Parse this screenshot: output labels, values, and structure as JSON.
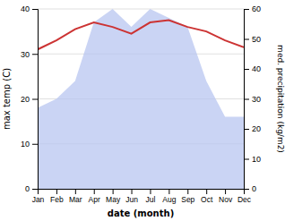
{
  "chart_data": {
    "type": "line",
    "xlabel": "date (month)",
    "ylabel": "max temp (C)",
    "y2label": "med. precipitation (kg/m2)",
    "categories": [
      "Jan",
      "Feb",
      "Mar",
      "Apr",
      "May",
      "Jun",
      "Jul",
      "Aug",
      "Sep",
      "Oct",
      "Nov",
      "Dec"
    ],
    "series": [
      {
        "type": "area",
        "color": "#b8c5f0",
        "values": [
          18,
          20,
          24,
          37,
          40,
          36,
          40,
          38,
          36,
          24,
          16,
          16
        ]
      },
      {
        "type": "line",
        "color": "#cc3333",
        "values": [
          31.0,
          33.0,
          35.5,
          37.0,
          36.0,
          34.5,
          37.0,
          37.5,
          36.0,
          35.0,
          33.0,
          31.5
        ]
      }
    ],
    "ylim": [
      0,
      40
    ],
    "yticks": [
      0,
      10,
      20,
      30,
      40
    ],
    "y2lim": [
      0,
      60
    ],
    "y2ticks": [
      0,
      10,
      20,
      30,
      40,
      50,
      60
    ],
    "grid": true
  }
}
